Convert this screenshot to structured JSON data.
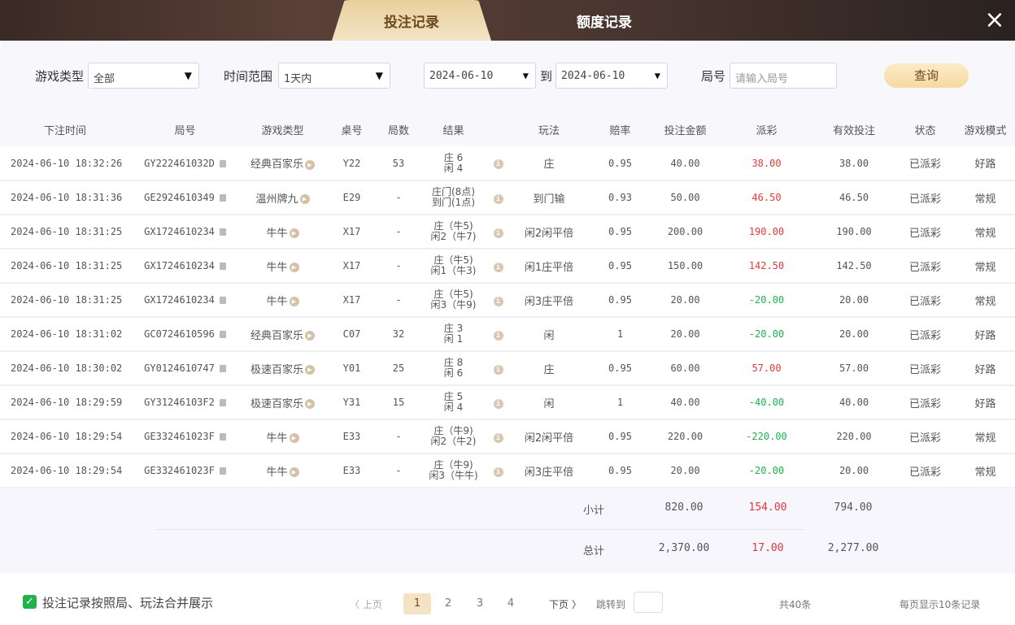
{
  "tabs": {
    "bets": "投注记录",
    "credit": "额度记录"
  },
  "close_icon": "×",
  "filters": {
    "game_type_label": "游戏类型",
    "game_type_value": "全部",
    "time_range_label": "时间范围",
    "time_range_value": "1天内",
    "date_from": "2024-06-10",
    "to_label": "到",
    "date_to": "2024-06-10",
    "round_label": "局号",
    "round_placeholder": "请输入局号",
    "query_button": "查询"
  },
  "columns": [
    "下注时间",
    "局号",
    "游戏类型",
    "桌号",
    "局数",
    "结果",
    "",
    "玩法",
    "赔率",
    "投注金额",
    "派彩",
    "有效投注",
    "状态",
    "游戏模式"
  ],
  "rows": [
    {
      "time": "2024-06-10 18:32:26",
      "round": "GY222461032D",
      "game": "经典百家乐",
      "table": "Y22",
      "count": "53",
      "result": [
        "庄 6",
        "闲 4"
      ],
      "play": "庄",
      "odds": "0.95",
      "amount": "40.00",
      "payout": "38.00",
      "valid": "38.00",
      "status": "已派彩",
      "mode": "好路"
    },
    {
      "time": "2024-06-10 18:31:36",
      "round": "GE2924610349",
      "game": "温州牌九",
      "table": "E29",
      "count": "-",
      "result": [
        "庄门(8点)",
        "到门(1点)"
      ],
      "play": "到门输",
      "odds": "0.93",
      "amount": "50.00",
      "payout": "46.50",
      "valid": "46.50",
      "status": "已派彩",
      "mode": "常规"
    },
    {
      "time": "2024-06-10 18:31:25",
      "round": "GX1724610234",
      "game": "牛牛",
      "table": "X17",
      "count": "-",
      "result": [
        "庄（牛5)",
        "闲2（牛7)"
      ],
      "play": "闲2闲平倍",
      "odds": "0.95",
      "amount": "200.00",
      "payout": "190.00",
      "valid": "190.00",
      "status": "已派彩",
      "mode": "常规"
    },
    {
      "time": "2024-06-10 18:31:25",
      "round": "GX1724610234",
      "game": "牛牛",
      "table": "X17",
      "count": "-",
      "result": [
        "庄（牛5)",
        "闲1（牛3)"
      ],
      "play": "闲1庄平倍",
      "odds": "0.95",
      "amount": "150.00",
      "payout": "142.50",
      "valid": "142.50",
      "status": "已派彩",
      "mode": "常规"
    },
    {
      "time": "2024-06-10 18:31:25",
      "round": "GX1724610234",
      "game": "牛牛",
      "table": "X17",
      "count": "-",
      "result": [
        "庄（牛5)",
        "闲3（牛9)"
      ],
      "play": "闲3庄平倍",
      "odds": "0.95",
      "amount": "20.00",
      "payout": "-20.00",
      "valid": "20.00",
      "status": "已派彩",
      "mode": "常规"
    },
    {
      "time": "2024-06-10 18:31:02",
      "round": "GC0724610596",
      "game": "经典百家乐",
      "table": "C07",
      "count": "32",
      "result": [
        "庄 3",
        "闲 1"
      ],
      "play": "闲",
      "odds": "1",
      "amount": "20.00",
      "payout": "-20.00",
      "valid": "20.00",
      "status": "已派彩",
      "mode": "好路"
    },
    {
      "time": "2024-06-10 18:30:02",
      "round": "GY0124610747",
      "game": "极速百家乐",
      "table": "Y01",
      "count": "25",
      "result": [
        "庄 8",
        "闲 6"
      ],
      "play": "庄",
      "odds": "0.95",
      "amount": "60.00",
      "payout": "57.00",
      "valid": "57.00",
      "status": "已派彩",
      "mode": "好路"
    },
    {
      "time": "2024-06-10 18:29:59",
      "round": "GY31246103F2",
      "game": "极速百家乐",
      "table": "Y31",
      "count": "15",
      "result": [
        "庄 5",
        "闲 4"
      ],
      "play": "闲",
      "odds": "1",
      "amount": "40.00",
      "payout": "-40.00",
      "valid": "40.00",
      "status": "已派彩",
      "mode": "好路"
    },
    {
      "time": "2024-06-10 18:29:54",
      "round": "GE332461023F",
      "game": "牛牛",
      "table": "E33",
      "count": "-",
      "result": [
        "庄（牛9)",
        "闲2（牛2)"
      ],
      "play": "闲2闲平倍",
      "odds": "0.95",
      "amount": "220.00",
      "payout": "-220.00",
      "valid": "220.00",
      "status": "已派彩",
      "mode": "常规"
    },
    {
      "time": "2024-06-10 18:29:54",
      "round": "GE332461023F",
      "game": "牛牛",
      "table": "E33",
      "count": "-",
      "result": [
        "庄（牛9)",
        "闲3（牛牛)"
      ],
      "play": "闲3庄平倍",
      "odds": "0.95",
      "amount": "20.00",
      "payout": "-20.00",
      "valid": "20.00",
      "status": "已派彩",
      "mode": "常规"
    }
  ],
  "subtotal": {
    "label": "小计",
    "amount": "820.00",
    "payout": "154.00",
    "valid": "794.00"
  },
  "total": {
    "label": "总计",
    "amount": "2,370.00",
    "payout": "17.00",
    "valid": "2,277.00"
  },
  "footer": {
    "merge_label": "投注记录按照局、玩法合并展示",
    "merge_checked": true,
    "prev": "〈 上页",
    "pages": [
      "1",
      "2",
      "3",
      "4"
    ],
    "current_page": "1",
    "next": "下页 〉",
    "jump_label": "跳转到",
    "total": "共40条",
    "per_page": "每页显示10条记录"
  },
  "colors": {
    "positive": "#e03a3a",
    "negative": "#1bb34a",
    "accent": "#f4e3c2"
  }
}
